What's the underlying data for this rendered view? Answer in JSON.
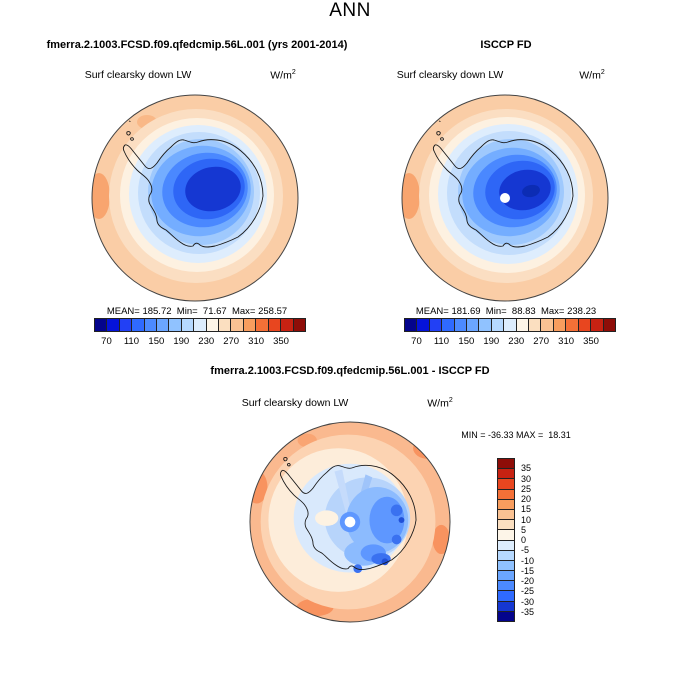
{
  "header": {
    "season_label": "ANN"
  },
  "field_label": "Surf clearsky down LW",
  "units": {
    "base": "W/m",
    "exp": "2"
  },
  "panels": {
    "model": {
      "title": "fmerra.2.1003.FCSD.f09.qfedcmip.56L.001 (yrs 2001-2014)",
      "stats": "MEAN= 185.72  Min=  71.67  Max= 258.57"
    },
    "obs": {
      "title": "ISCCP FD",
      "stats": "MEAN= 181.69  Min=  88.83  Max= 238.23"
    },
    "diff": {
      "title": "fmerra.2.1003.FCSD.f09.qfedcmip.56L.001 - ISCCP FD",
      "minmax": "MIN = -36.33 MAX =  18.31"
    }
  },
  "colorbar_abs": {
    "orientation": "horizontal",
    "colors": [
      "#04048c",
      "#0513d9",
      "#2240f5",
      "#2f6aff",
      "#4c8aff",
      "#6ba6ff",
      "#90c2ff",
      "#b6d9ff",
      "#ddedfd",
      "#fdf5e8",
      "#fbdfc0",
      "#fac293",
      "#f89d5e",
      "#f47037",
      "#e8461f",
      "#c72212",
      "#8e0d08"
    ],
    "ticks": [
      "70",
      "110",
      "150",
      "190",
      "230",
      "270",
      "310",
      "350"
    ]
  },
  "colorbar_diff": {
    "orientation": "vertical",
    "colors": [
      "#8e0d08",
      "#c72212",
      "#e8461f",
      "#f47037",
      "#f89d5e",
      "#fac293",
      "#fbdfc0",
      "#fdf5e8",
      "#ddedfd",
      "#b6d9ff",
      "#90c2ff",
      "#6ba6ff",
      "#4c8aff",
      "#2f6aff",
      "#1537d2",
      "#04048c"
    ],
    "ticks": [
      "35",
      "30",
      "25",
      "20",
      "15",
      "10",
      "5",
      "0",
      "-5",
      "-10",
      "-15",
      "-20",
      "-25",
      "-30",
      "-35"
    ]
  },
  "chart_data": [
    {
      "type": "heatmap",
      "subtype": "south-polar-stereographic-contour-map",
      "title": "fmerra.2.1003.FCSD.f09.qfedcmip.56L.001 (yrs 2001-2014)",
      "variable": "Surf clearsky down LW",
      "units": "W/m^2",
      "stats": {
        "mean": 185.72,
        "min": 71.67,
        "max": 258.57
      },
      "level_ticks": [
        70,
        110,
        150,
        190,
        230,
        270,
        310,
        350
      ],
      "level_step": 20,
      "palette_ref": "colorbar_abs",
      "legend_position": "bottom",
      "notes": "Antarctica outlined; low values (blue) over continent, high values (orange) over surrounding ocean"
    },
    {
      "type": "heatmap",
      "subtype": "south-polar-stereographic-contour-map",
      "title": "ISCCP FD",
      "variable": "Surf clearsky down LW",
      "units": "W/m^2",
      "stats": {
        "mean": 181.69,
        "min": 88.83,
        "max": 238.23
      },
      "level_ticks": [
        70,
        110,
        150,
        190,
        230,
        270,
        310,
        350
      ],
      "level_step": 20,
      "palette_ref": "colorbar_abs",
      "legend_position": "bottom",
      "notes": "white dot at pole = missing observational data"
    },
    {
      "type": "heatmap",
      "subtype": "south-polar-stereographic-difference-map",
      "title": "fmerra.2.1003.FCSD.f09.qfedcmip.56L.001 - ISCCP FD",
      "variable": "Surf clearsky down LW",
      "units": "W/m^2",
      "stats": {
        "min": -36.33,
        "max": 18.31
      },
      "level_ticks": [
        35,
        30,
        25,
        20,
        15,
        10,
        5,
        0,
        -5,
        -10,
        -15,
        -20,
        -25,
        -30,
        -35
      ],
      "level_step": 5,
      "palette_ref": "colorbar_diff",
      "legend_position": "right",
      "notes": "negative differences (blue) over Antarctic continent, positive (orange) over ocean; white dot at pole"
    }
  ]
}
